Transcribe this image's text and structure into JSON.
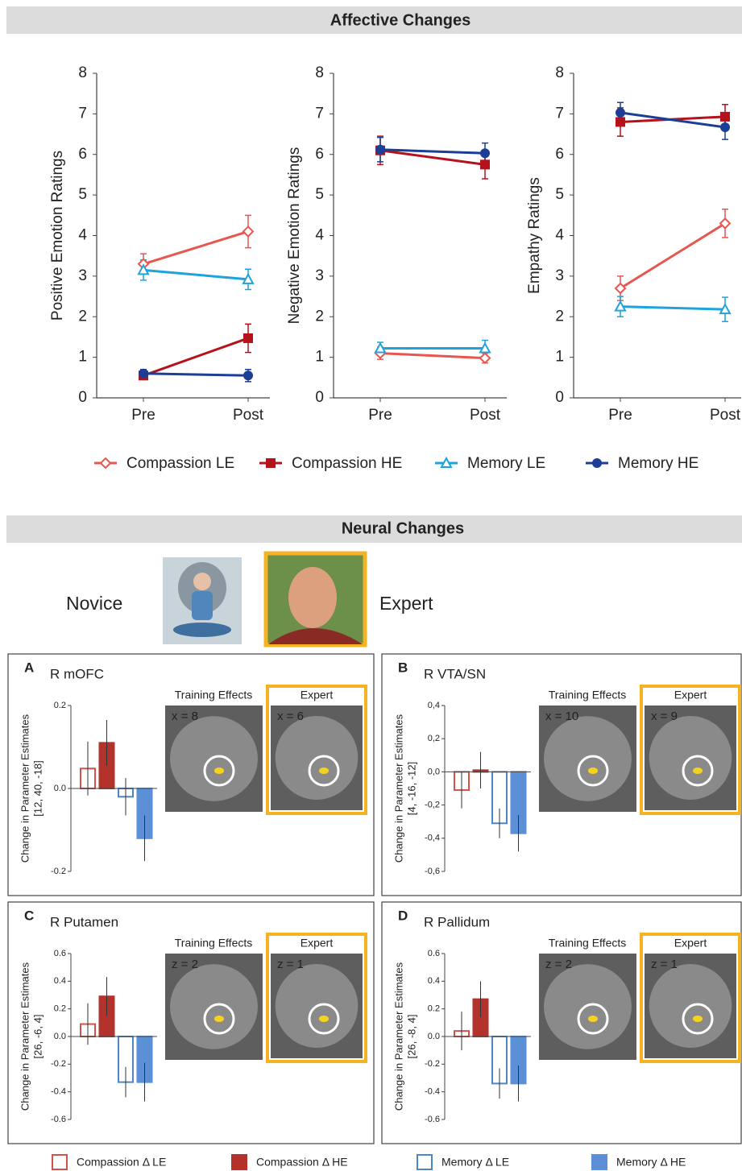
{
  "sections": {
    "affective": "Affective Changes",
    "neural": "Neural Changes"
  },
  "photos": {
    "novice": "Novice",
    "expert": "Expert"
  },
  "legends": {
    "lines": [
      {
        "name": "Compassion LE",
        "color": "#e8574f",
        "marker": "diamond"
      },
      {
        "name": "Compassion HE",
        "color": "#b5121b",
        "marker": "square"
      },
      {
        "name": "Memory LE",
        "color": "#1fa3dc",
        "marker": "triangle"
      },
      {
        "name": "Memory HE",
        "color": "#1b3f95",
        "marker": "circle"
      }
    ],
    "bars": [
      {
        "name": "Compassion Δ LE",
        "color": "#d4504a",
        "filled": false
      },
      {
        "name": "Compassion Δ HE",
        "color": "#b3332c",
        "filled": true
      },
      {
        "name": "Memory Δ LE",
        "color": "#4a86c8",
        "filled": false
      },
      {
        "name": "Memory Δ HE",
        "color": "#5b8fd6",
        "filled": true
      }
    ]
  },
  "chart_data": [
    {
      "type": "line",
      "ylabel": "Positive Emotion Ratings",
      "categories": [
        "Pre",
        "Post"
      ],
      "ylim": [
        0,
        8
      ],
      "yticks": [
        0,
        1,
        2,
        3,
        4,
        5,
        6,
        7,
        8
      ],
      "series": [
        {
          "values": [
            3.3,
            4.1
          ],
          "errors": [
            0.25,
            0.4
          ]
        },
        {
          "values": [
            0.55,
            1.47
          ],
          "errors": [
            0.1,
            0.35
          ]
        },
        {
          "values": [
            3.15,
            2.92
          ],
          "errors": [
            0.25,
            0.25
          ]
        },
        {
          "values": [
            0.6,
            0.55
          ],
          "errors": [
            0.1,
            0.15
          ]
        }
      ]
    },
    {
      "type": "line",
      "ylabel": "Negative Emotion Ratings",
      "categories": [
        "Pre",
        "Post"
      ],
      "ylim": [
        0,
        8
      ],
      "yticks": [
        0,
        1,
        2,
        3,
        4,
        5,
        6,
        7,
        8
      ],
      "series": [
        {
          "values": [
            1.1,
            0.98
          ],
          "errors": [
            0.15,
            0.12
          ]
        },
        {
          "values": [
            6.1,
            5.75
          ],
          "errors": [
            0.35,
            0.35
          ]
        },
        {
          "values": [
            1.22,
            1.22
          ],
          "errors": [
            0.15,
            0.2
          ]
        },
        {
          "values": [
            6.12,
            6.03
          ],
          "errors": [
            0.3,
            0.25
          ]
        }
      ]
    },
    {
      "type": "line",
      "ylabel": "Empathy Ratings",
      "categories": [
        "Pre",
        "Post"
      ],
      "ylim": [
        0,
        8
      ],
      "yticks": [
        0,
        1,
        2,
        3,
        4,
        5,
        6,
        7,
        8
      ],
      "series": [
        {
          "values": [
            2.7,
            4.3
          ],
          "errors": [
            0.3,
            0.35
          ]
        },
        {
          "values": [
            6.8,
            6.93
          ],
          "errors": [
            0.35,
            0.3
          ]
        },
        {
          "values": [
            2.25,
            2.18
          ],
          "errors": [
            0.25,
            0.3
          ]
        },
        {
          "values": [
            7.03,
            6.67
          ],
          "errors": [
            0.25,
            0.3
          ]
        }
      ]
    },
    {
      "type": "bar",
      "panel": "A",
      "title": "R mOFC",
      "ylabel": "Change in Parameter Estimates",
      "ylabel2": "[12,  40, -18]",
      "ylim": [
        -0.2,
        0.2
      ],
      "yticks": [
        -0.2,
        {
          "value": 0,
          "label": "0.0"
        },
        0.2
      ],
      "values": [
        0.048,
        0.11,
        -0.02,
        -0.12
      ],
      "errors": [
        0.065,
        0.055,
        0.045,
        0.055
      ],
      "images": {
        "training": "Training Effects",
        "expert": "Expert",
        "training_coord": "x = 8",
        "expert_coord": "x = 6"
      }
    },
    {
      "type": "bar",
      "panel": "B",
      "title": "R VTA/SN",
      "ylabel": "Change in Parameter Estimates",
      "ylabel2": "[4, -16, -12]",
      "ylim": [
        -0.6,
        0.4
      ],
      "yticks": [
        {
          "value": -0.6,
          "label": "-0,6"
        },
        {
          "value": -0.4,
          "label": "-0,4"
        },
        {
          "value": -0.2,
          "label": "-0,2"
        },
        {
          "value": 0,
          "label": "0,0"
        },
        {
          "value": 0.2,
          "label": "0,2"
        },
        {
          "value": 0.4,
          "label": "0,4"
        }
      ],
      "values": [
        -0.11,
        0.01,
        -0.31,
        -0.37
      ],
      "errors": [
        0.11,
        0.11,
        0.09,
        0.11
      ],
      "images": {
        "training": "Training Effects",
        "expert": "Expert",
        "training_coord": "x = 10",
        "expert_coord": "x = 9"
      }
    },
    {
      "type": "bar",
      "panel": "C",
      "title": "R Putamen",
      "ylabel": "Change in Parameter Estimates",
      "ylabel2": "[26, -6, 4]",
      "ylim": [
        -0.6,
        0.6
      ],
      "yticks": [
        -0.6,
        -0.4,
        -0.2,
        {
          "value": 0,
          "label": "0.0"
        },
        0.2,
        0.4,
        0.6
      ],
      "values": [
        0.09,
        0.29,
        -0.33,
        -0.33
      ],
      "errors": [
        0.15,
        0.14,
        0.11,
        0.14
      ],
      "images": {
        "training": "Training Effects",
        "expert": "Expert",
        "training_coord": "z = 2",
        "expert_coord": "z = 1"
      }
    },
    {
      "type": "bar",
      "panel": "D",
      "title": "R Pallidum",
      "ylabel": "Change in Parameter Estimates",
      "ylabel2": "[26, -8, 4]",
      "ylim": [
        -0.6,
        0.6
      ],
      "yticks": [
        -0.6,
        -0.4,
        -0.2,
        {
          "value": 0,
          "label": "0.0"
        },
        0.2,
        0.4,
        0.6
      ],
      "values": [
        0.04,
        0.27,
        -0.34,
        -0.34
      ],
      "errors": [
        0.14,
        0.13,
        0.11,
        0.13
      ],
      "images": {
        "training": "Training Effects",
        "expert": "Expert",
        "training_coord": "z = 2",
        "expert_coord": "z = 1"
      }
    }
  ]
}
